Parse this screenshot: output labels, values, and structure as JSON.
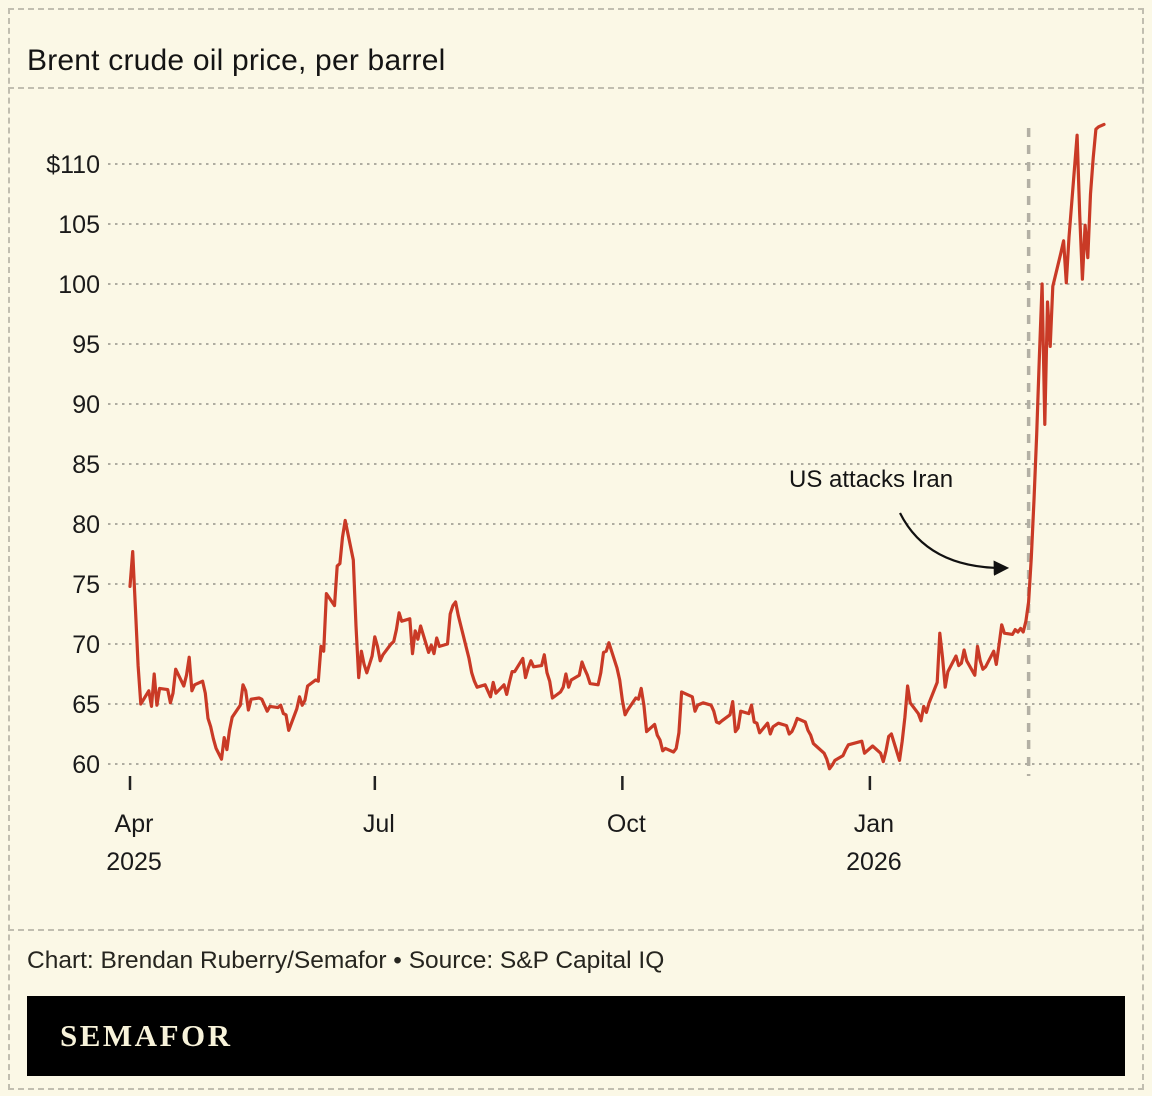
{
  "title": "Brent crude oil price, per barrel",
  "annotation_label": "US attacks Iran",
  "footer": {
    "credit": "Chart: Brendan Ruberry/Semafor • Source: S&P Capital IQ"
  },
  "logo": {
    "text": "SEMAFOR"
  },
  "colors": {
    "background": "#fbf8e6",
    "line": "#c93a26",
    "grid": "#96948a",
    "event_line": "#b3b0a4",
    "text": "#1a1a1a",
    "tick": "#222222",
    "logo_bar_bg": "#000000",
    "logo_text": "#f8f3da"
  },
  "chart_data": {
    "type": "line",
    "title": "Brent crude oil price, per barrel",
    "unit": "USD per barrel",
    "grid": true,
    "ylim": [
      57.5,
      114
    ],
    "y_ticks": [
      60,
      65,
      70,
      75,
      80,
      85,
      90,
      95,
      100,
      105,
      110
    ],
    "y_tick_labels": [
      "60",
      "65",
      "70",
      "75",
      "80",
      "85",
      "90",
      "95",
      "100",
      "105",
      "$110"
    ],
    "x_ticks": [
      {
        "day": 0,
        "label": "Apr",
        "sublabel": "2025"
      },
      {
        "day": 91,
        "label": "Jul"
      },
      {
        "day": 183,
        "label": "Oct"
      },
      {
        "day": 275,
        "label": "Jan",
        "sublabel": "2026"
      }
    ],
    "annotation": {
      "text": "US attacks Iran",
      "event_day": 334
    },
    "series_note": "pairs of [days since Apr 1 2025, price USD/bbl]",
    "series": [
      [
        0,
        74.8
      ],
      [
        1,
        77.7
      ],
      [
        2,
        73.0
      ],
      [
        3,
        68.2
      ],
      [
        4,
        65.0
      ],
      [
        7,
        66.1
      ],
      [
        8,
        64.8
      ],
      [
        9,
        67.5
      ],
      [
        10,
        64.9
      ],
      [
        11,
        66.3
      ],
      [
        14,
        66.2
      ],
      [
        15,
        65.1
      ],
      [
        16,
        65.9
      ],
      [
        17,
        67.9
      ],
      [
        20,
        66.5
      ],
      [
        21,
        67.4
      ],
      [
        22,
        68.9
      ],
      [
        23,
        66.1
      ],
      [
        24,
        66.6
      ],
      [
        27,
        66.9
      ],
      [
        28,
        65.9
      ],
      [
        29,
        63.8
      ],
      [
        30,
        63.1
      ],
      [
        31,
        62.1
      ],
      [
        32,
        61.3
      ],
      [
        34,
        60.4
      ],
      [
        35,
        62.2
      ],
      [
        36,
        61.2
      ],
      [
        37,
        62.8
      ],
      [
        38,
        63.9
      ],
      [
        41,
        64.9
      ],
      [
        42,
        66.6
      ],
      [
        43,
        66.1
      ],
      [
        44,
        64.5
      ],
      [
        45,
        65.4
      ],
      [
        48,
        65.5
      ],
      [
        49,
        65.4
      ],
      [
        50,
        64.9
      ],
      [
        51,
        64.4
      ],
      [
        52,
        64.8
      ],
      [
        55,
        64.7
      ],
      [
        56,
        64.9
      ],
      [
        57,
        64.2
      ],
      [
        58,
        64.1
      ],
      [
        59,
        62.8
      ],
      [
        62,
        64.6
      ],
      [
        63,
        65.6
      ],
      [
        64,
        64.9
      ],
      [
        65,
        65.3
      ],
      [
        66,
        66.5
      ],
      [
        69,
        67.0
      ],
      [
        70,
        66.9
      ],
      [
        71,
        69.8
      ],
      [
        72,
        69.4
      ],
      [
        73,
        74.2
      ],
      [
        76,
        73.2
      ],
      [
        77,
        76.5
      ],
      [
        78,
        76.7
      ],
      [
        79,
        78.9
      ],
      [
        80,
        80.3
      ],
      [
        83,
        77.0
      ],
      [
        84,
        71.5
      ],
      [
        85,
        67.2
      ],
      [
        86,
        69.4
      ],
      [
        87,
        68.3
      ],
      [
        88,
        67.6
      ],
      [
        90,
        69.0
      ],
      [
        91,
        70.6
      ],
      [
        92,
        69.8
      ],
      [
        93,
        68.6
      ],
      [
        94,
        69.1
      ],
      [
        97,
        70.0
      ],
      [
        98,
        70.2
      ],
      [
        99,
        71.2
      ],
      [
        100,
        72.6
      ],
      [
        101,
        71.9
      ],
      [
        104,
        72.1
      ],
      [
        105,
        69.2
      ],
      [
        106,
        71.1
      ],
      [
        107,
        70.4
      ],
      [
        108,
        71.5
      ],
      [
        111,
        69.3
      ],
      [
        112,
        69.9
      ],
      [
        113,
        69.2
      ],
      [
        114,
        70.5
      ],
      [
        115,
        69.8
      ],
      [
        118,
        70.0
      ],
      [
        119,
        72.5
      ],
      [
        120,
        73.2
      ],
      [
        121,
        73.5
      ],
      [
        122,
        72.4
      ],
      [
        125,
        69.7
      ],
      [
        126,
        68.8
      ],
      [
        127,
        67.6
      ],
      [
        128,
        66.9
      ],
      [
        129,
        66.4
      ],
      [
        132,
        66.6
      ],
      [
        133,
        66.1
      ],
      [
        134,
        65.6
      ],
      [
        135,
        66.8
      ],
      [
        136,
        65.9
      ],
      [
        139,
        66.6
      ],
      [
        140,
        65.8
      ],
      [
        141,
        66.8
      ],
      [
        142,
        67.7
      ],
      [
        143,
        67.7
      ],
      [
        146,
        68.8
      ],
      [
        147,
        67.2
      ],
      [
        148,
        68.0
      ],
      [
        149,
        68.6
      ],
      [
        150,
        68.1
      ],
      [
        153,
        68.2
      ],
      [
        154,
        69.1
      ],
      [
        155,
        67.6
      ],
      [
        156,
        66.9
      ],
      [
        157,
        65.5
      ],
      [
        160,
        66.0
      ],
      [
        161,
        66.4
      ],
      [
        162,
        67.5
      ],
      [
        163,
        66.4
      ],
      [
        164,
        67.0
      ],
      [
        167,
        67.4
      ],
      [
        168,
        68.5
      ],
      [
        169,
        67.9
      ],
      [
        170,
        67.4
      ],
      [
        171,
        66.7
      ],
      [
        174,
        66.6
      ],
      [
        175,
        67.6
      ],
      [
        176,
        69.3
      ],
      [
        177,
        69.4
      ],
      [
        178,
        70.1
      ],
      [
        181,
        68.0
      ],
      [
        182,
        67.0
      ],
      [
        183,
        65.3
      ],
      [
        184,
        64.1
      ],
      [
        185,
        64.5
      ],
      [
        188,
        65.5
      ],
      [
        189,
        65.4
      ],
      [
        190,
        66.3
      ],
      [
        191,
        64.9
      ],
      [
        192,
        62.7
      ],
      [
        195,
        63.3
      ],
      [
        196,
        62.4
      ],
      [
        197,
        62.0
      ],
      [
        198,
        61.1
      ],
      [
        199,
        61.3
      ],
      [
        202,
        61.0
      ],
      [
        203,
        61.3
      ],
      [
        204,
        62.6
      ],
      [
        205,
        66.0
      ],
      [
        206,
        65.9
      ],
      [
        209,
        65.6
      ],
      [
        210,
        64.4
      ],
      [
        211,
        64.9
      ],
      [
        212,
        65.0
      ],
      [
        213,
        65.1
      ],
      [
        216,
        64.9
      ],
      [
        217,
        64.4
      ],
      [
        218,
        63.5
      ],
      [
        219,
        63.4
      ],
      [
        220,
        63.6
      ],
      [
        223,
        64.1
      ],
      [
        224,
        65.2
      ],
      [
        225,
        62.7
      ],
      [
        226,
        63.0
      ],
      [
        227,
        64.4
      ],
      [
        230,
        64.2
      ],
      [
        231,
        64.9
      ],
      [
        232,
        63.5
      ],
      [
        233,
        63.4
      ],
      [
        234,
        62.6
      ],
      [
        237,
        63.4
      ],
      [
        238,
        62.5
      ],
      [
        239,
        63.1
      ],
      [
        241,
        63.4
      ],
      [
        244,
        63.2
      ],
      [
        245,
        62.5
      ],
      [
        246,
        62.7
      ],
      [
        247,
        63.2
      ],
      [
        248,
        63.8
      ],
      [
        251,
        63.5
      ],
      [
        252,
        62.8
      ],
      [
        253,
        62.4
      ],
      [
        254,
        61.7
      ],
      [
        255,
        61.5
      ],
      [
        258,
        60.9
      ],
      [
        259,
        60.4
      ],
      [
        260,
        59.6
      ],
      [
        261,
        59.9
      ],
      [
        262,
        60.3
      ],
      [
        265,
        60.7
      ],
      [
        266,
        61.2
      ],
      [
        267,
        61.6
      ],
      [
        272,
        61.9
      ],
      [
        273,
        60.9
      ],
      [
        276,
        61.5
      ],
      [
        279,
        60.9
      ],
      [
        280,
        60.2
      ],
      [
        281,
        61.1
      ],
      [
        282,
        62.3
      ],
      [
        283,
        62.5
      ],
      [
        286,
        60.3
      ],
      [
        287,
        61.9
      ],
      [
        288,
        63.9
      ],
      [
        289,
        66.5
      ],
      [
        290,
        65.1
      ],
      [
        293,
        64.2
      ],
      [
        294,
        63.6
      ],
      [
        295,
        64.8
      ],
      [
        296,
        64.3
      ],
      [
        297,
        65.1
      ],
      [
        300,
        66.8
      ],
      [
        301,
        70.9
      ],
      [
        302,
        68.9
      ],
      [
        303,
        66.4
      ],
      [
        304,
        67.7
      ],
      [
        307,
        69.0
      ],
      [
        308,
        68.2
      ],
      [
        309,
        68.4
      ],
      [
        310,
        69.5
      ],
      [
        311,
        68.6
      ],
      [
        314,
        67.4
      ],
      [
        315,
        69.8
      ],
      [
        316,
        68.6
      ],
      [
        317,
        67.9
      ],
      [
        318,
        68.1
      ],
      [
        321,
        69.4
      ],
      [
        322,
        68.3
      ],
      [
        323,
        69.9
      ],
      [
        324,
        71.6
      ],
      [
        325,
        70.9
      ],
      [
        328,
        70.8
      ],
      [
        329,
        71.2
      ],
      [
        330,
        71.0
      ],
      [
        331,
        71.3
      ],
      [
        332,
        71.0
      ],
      [
        333,
        71.9
      ],
      [
        334,
        73.5
      ],
      [
        335,
        77.2
      ],
      [
        336,
        82.0
      ],
      [
        337,
        87.5
      ],
      [
        338,
        94.0
      ],
      [
        339,
        100.0
      ],
      [
        340,
        88.3
      ],
      [
        341,
        98.5
      ],
      [
        342,
        94.8
      ],
      [
        343,
        99.8
      ],
      [
        346,
        102.6
      ],
      [
        347,
        103.6
      ],
      [
        348,
        100.1
      ],
      [
        349,
        103.9
      ],
      [
        352,
        112.4
      ],
      [
        353,
        105.8
      ],
      [
        354,
        100.4
      ],
      [
        355,
        104.9
      ],
      [
        356,
        102.2
      ],
      [
        357,
        107.5
      ],
      [
        358,
        110.5
      ],
      [
        359,
        112.9
      ],
      [
        360,
        113.1
      ],
      [
        362,
        113.3
      ]
    ]
  }
}
